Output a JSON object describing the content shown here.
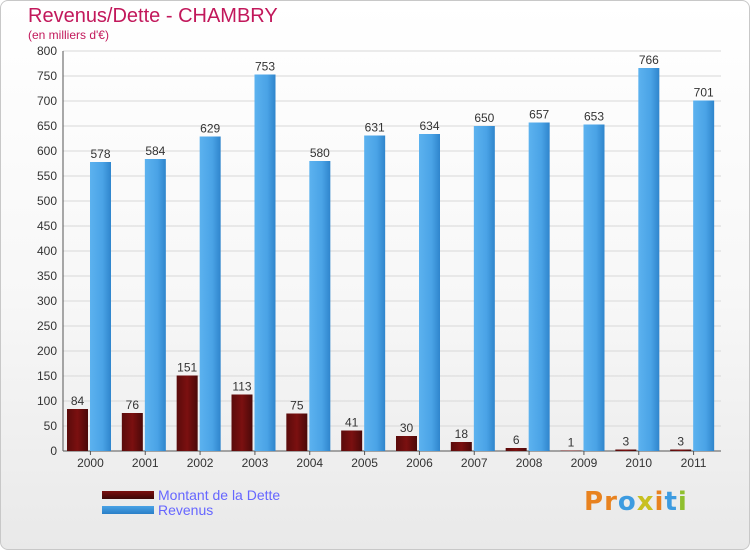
{
  "title": "Revenus/Dette - CHAMBRY",
  "subtitle": "(en milliers d'€)",
  "legend": {
    "debt_label": "Montant de la Dette",
    "revenue_label": "Revenus"
  },
  "logo": {
    "text": "Proxiti"
  },
  "colors": {
    "debt": "#7b1010",
    "revenue": "#4aa3e6",
    "title": "#c2185b",
    "legend_text": "#6666ff",
    "grid": "#d8d8d8",
    "axis_text": "#333333"
  },
  "chart_data": {
    "type": "bar",
    "title": "Revenus/Dette - CHAMBRY",
    "subtitle": "(en milliers d'€)",
    "xlabel": "",
    "ylabel": "",
    "categories": [
      "2000",
      "2001",
      "2002",
      "2003",
      "2004",
      "2005",
      "2006",
      "2007",
      "2008",
      "2009",
      "2010",
      "2011"
    ],
    "series": [
      {
        "name": "Montant de la Dette",
        "values": [
          84,
          76,
          151,
          113,
          75,
          41,
          30,
          18,
          6,
          1,
          3,
          3
        ]
      },
      {
        "name": "Revenus",
        "values": [
          578,
          584,
          629,
          753,
          580,
          631,
          634,
          650,
          657,
          653,
          766,
          701
        ]
      }
    ],
    "ylim": [
      0,
      800
    ],
    "yticks": [
      0,
      50,
      100,
      150,
      200,
      250,
      300,
      350,
      400,
      450,
      500,
      550,
      600,
      650,
      700,
      750,
      800
    ],
    "grid": true,
    "legend_position": "bottom-left"
  }
}
